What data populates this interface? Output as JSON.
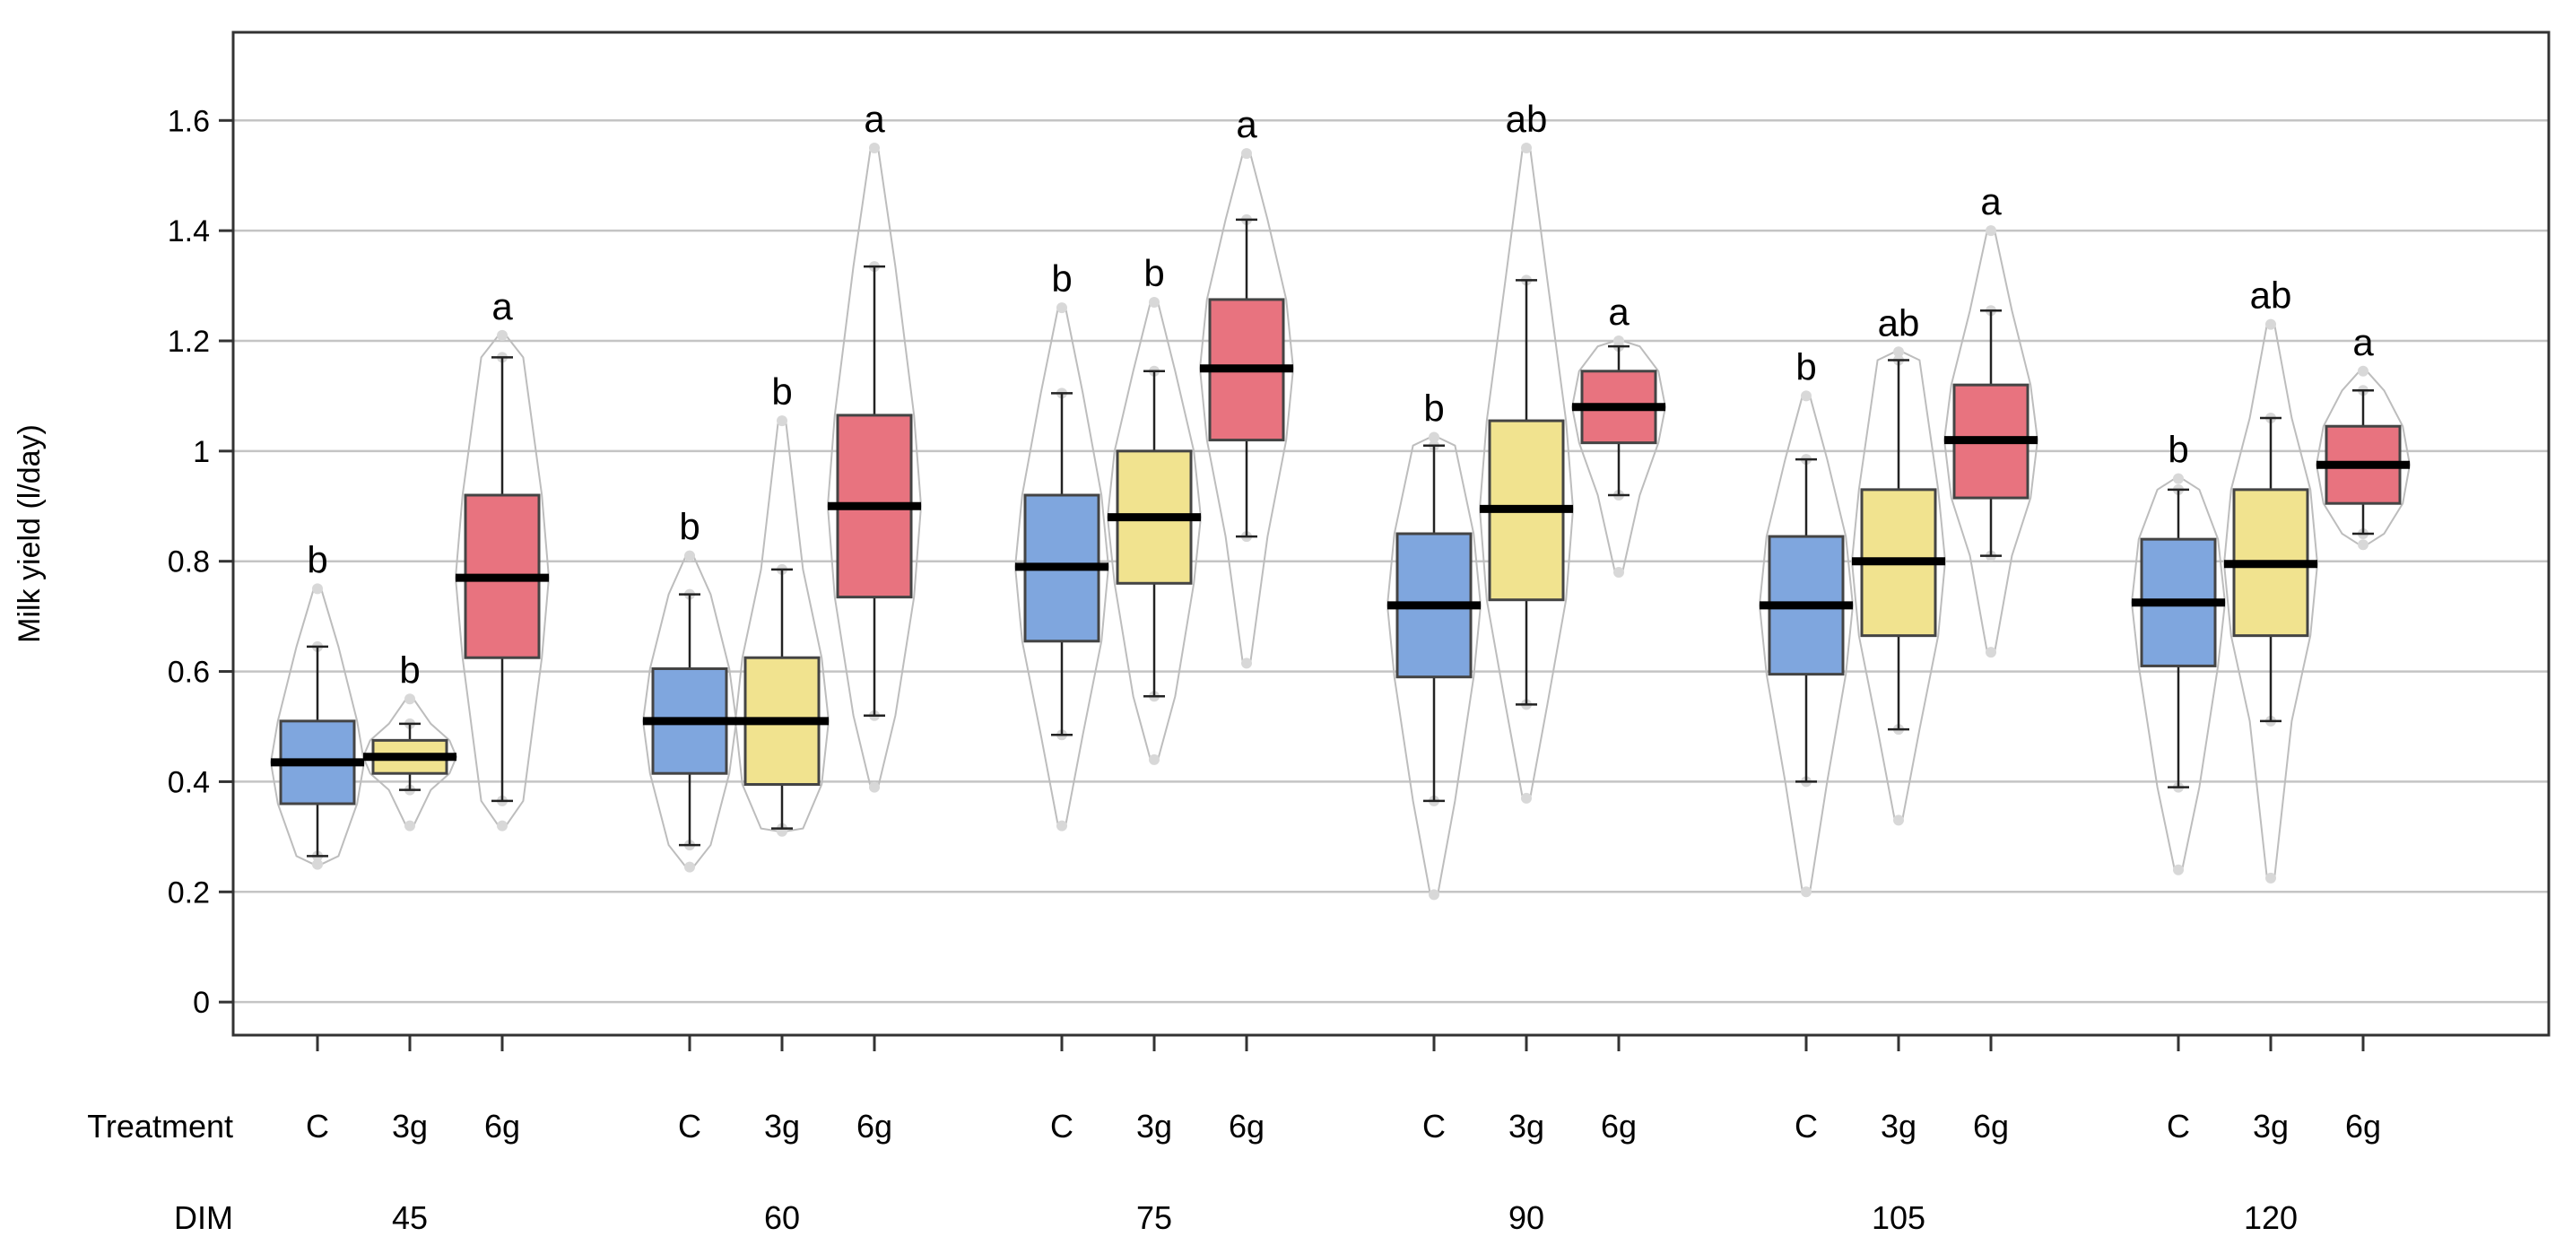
{
  "chart_data": {
    "type": "boxplot",
    "title": "",
    "ylabel": "Milk yield (l/day)",
    "ylim": [
      -0.06,
      1.76
    ],
    "yticks": [
      0,
      0.2,
      0.4,
      0.6,
      0.8,
      1,
      1.2,
      1.4,
      1.6
    ],
    "ytick_labels": [
      "0",
      "0.2",
      "0.4",
      "0.6",
      "0.8",
      "1",
      "1.2",
      "1.4",
      "1.6"
    ],
    "grid": true,
    "row_labels": {
      "treatment": "Treatment",
      "dim": "DIM"
    },
    "treatments": [
      "C",
      "3g",
      "6g"
    ],
    "colors": {
      "C": "#7fa6de",
      "3g": "#f1e38f",
      "6g": "#e8737f"
    },
    "groups": [
      {
        "dim": "45",
        "boxes": [
          {
            "treatment": "C",
            "q1": 0.36,
            "median": 0.435,
            "q3": 0.51,
            "whisker_low": 0.265,
            "whisker_high": 0.645,
            "min": 0.25,
            "max": 0.75,
            "letter": "b"
          },
          {
            "treatment": "3g",
            "q1": 0.415,
            "median": 0.445,
            "q3": 0.475,
            "whisker_low": 0.385,
            "whisker_high": 0.505,
            "min": 0.32,
            "max": 0.55,
            "letter": "b"
          },
          {
            "treatment": "6g",
            "q1": 0.625,
            "median": 0.77,
            "q3": 0.92,
            "whisker_low": 0.365,
            "whisker_high": 1.17,
            "min": 0.32,
            "max": 1.21,
            "letter": "a"
          }
        ]
      },
      {
        "dim": "60",
        "boxes": [
          {
            "treatment": "C",
            "q1": 0.415,
            "median": 0.51,
            "q3": 0.605,
            "whisker_low": 0.285,
            "whisker_high": 0.74,
            "min": 0.245,
            "max": 0.81,
            "letter": "b"
          },
          {
            "treatment": "3g",
            "q1": 0.395,
            "median": 0.51,
            "q3": 0.625,
            "whisker_low": 0.315,
            "whisker_high": 0.785,
            "min": 0.31,
            "max": 1.055,
            "letter": "b"
          },
          {
            "treatment": "6g",
            "q1": 0.735,
            "median": 0.9,
            "q3": 1.065,
            "whisker_low": 0.52,
            "whisker_high": 1.335,
            "min": 0.39,
            "max": 1.55,
            "letter": "a"
          }
        ]
      },
      {
        "dim": "75",
        "boxes": [
          {
            "treatment": "C",
            "q1": 0.655,
            "median": 0.79,
            "q3": 0.92,
            "whisker_low": 0.485,
            "whisker_high": 1.105,
            "min": 0.32,
            "max": 1.26,
            "letter": "b"
          },
          {
            "treatment": "3g",
            "q1": 0.76,
            "median": 0.88,
            "q3": 1.0,
            "whisker_low": 0.555,
            "whisker_high": 1.145,
            "min": 0.44,
            "max": 1.27,
            "letter": "b"
          },
          {
            "treatment": "6g",
            "q1": 1.02,
            "median": 1.15,
            "q3": 1.275,
            "whisker_low": 0.845,
            "whisker_high": 1.42,
            "min": 0.615,
            "max": 1.54,
            "letter": "a"
          }
        ]
      },
      {
        "dim": "90",
        "boxes": [
          {
            "treatment": "C",
            "q1": 0.59,
            "median": 0.72,
            "q3": 0.85,
            "whisker_low": 0.365,
            "whisker_high": 1.01,
            "min": 0.195,
            "max": 1.025,
            "letter": "b"
          },
          {
            "treatment": "3g",
            "q1": 0.73,
            "median": 0.895,
            "q3": 1.055,
            "whisker_low": 0.54,
            "whisker_high": 1.31,
            "min": 0.37,
            "max": 1.55,
            "letter": "ab"
          },
          {
            "treatment": "6g",
            "q1": 1.015,
            "median": 1.08,
            "q3": 1.145,
            "whisker_low": 0.92,
            "whisker_high": 1.19,
            "min": 0.78,
            "max": 1.2,
            "letter": "a"
          }
        ]
      },
      {
        "dim": "105",
        "boxes": [
          {
            "treatment": "C",
            "q1": 0.595,
            "median": 0.72,
            "q3": 0.845,
            "whisker_low": 0.4,
            "whisker_high": 0.985,
            "min": 0.2,
            "max": 1.1,
            "letter": "b"
          },
          {
            "treatment": "3g",
            "q1": 0.665,
            "median": 0.8,
            "q3": 0.93,
            "whisker_low": 0.495,
            "whisker_high": 1.165,
            "min": 0.33,
            "max": 1.18,
            "letter": "ab"
          },
          {
            "treatment": "6g",
            "q1": 0.915,
            "median": 1.02,
            "q3": 1.12,
            "whisker_low": 0.81,
            "whisker_high": 1.255,
            "min": 0.635,
            "max": 1.4,
            "letter": "a"
          }
        ]
      },
      {
        "dim": "120",
        "boxes": [
          {
            "treatment": "C",
            "q1": 0.61,
            "median": 0.725,
            "q3": 0.84,
            "whisker_low": 0.39,
            "whisker_high": 0.93,
            "min": 0.24,
            "max": 0.95,
            "letter": "b"
          },
          {
            "treatment": "3g",
            "q1": 0.665,
            "median": 0.795,
            "q3": 0.93,
            "whisker_low": 0.51,
            "whisker_high": 1.06,
            "min": 0.225,
            "max": 1.23,
            "letter": "ab"
          },
          {
            "treatment": "6g",
            "q1": 0.905,
            "median": 0.975,
            "q3": 1.045,
            "whisker_low": 0.85,
            "whisker_high": 1.11,
            "min": 0.83,
            "max": 1.145,
            "letter": "a"
          }
        ]
      }
    ]
  }
}
